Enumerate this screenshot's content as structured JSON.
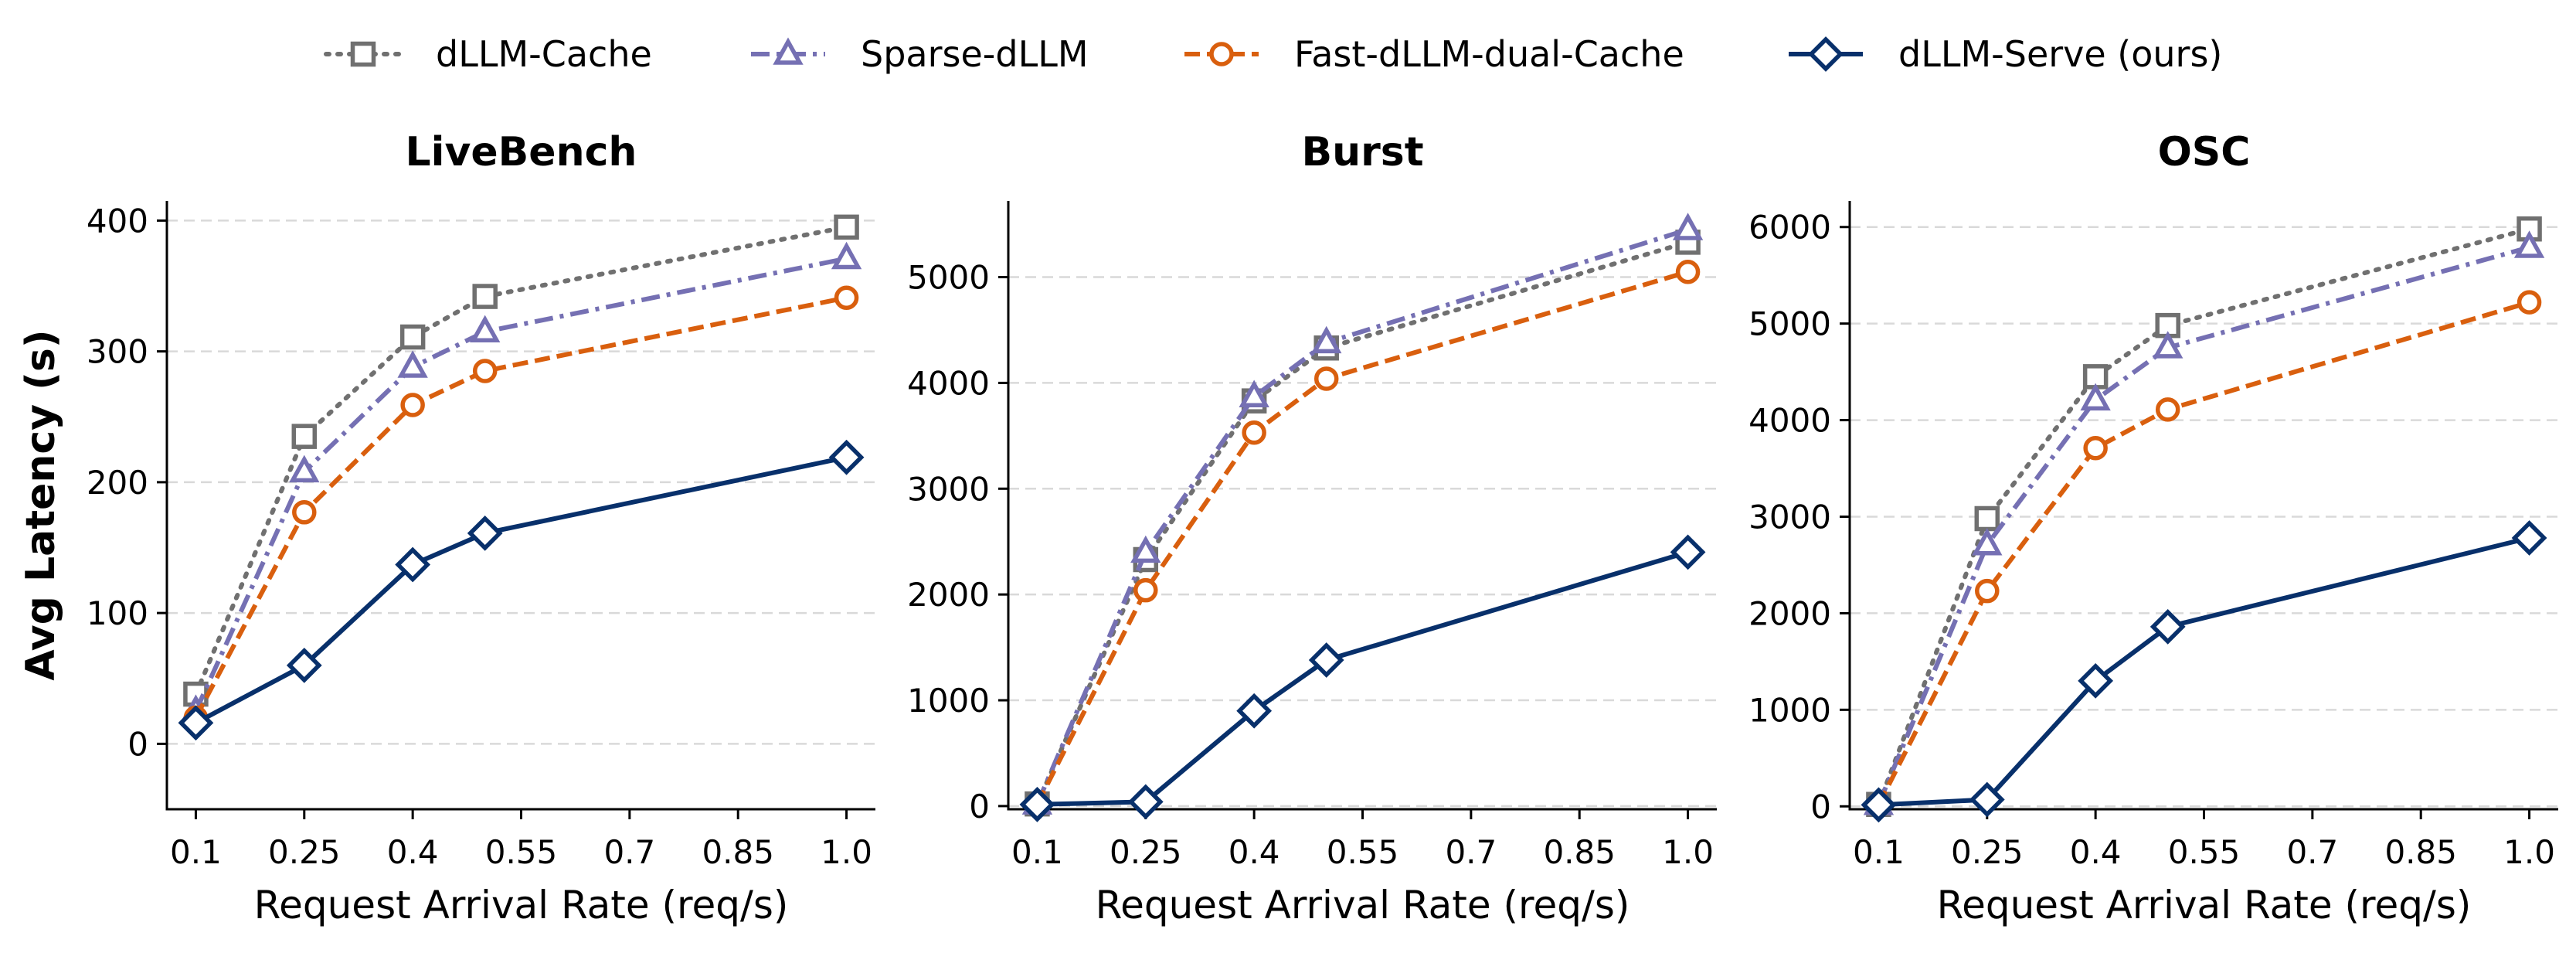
{
  "legend": {
    "items": [
      {
        "name": "dLLM-Cache"
      },
      {
        "name": "Sparse-dLLM"
      },
      {
        "name": "Fast-dLLM-dual-Cache"
      },
      {
        "name": "dLLM-Serve (ours)"
      }
    ]
  },
  "styles": {
    "dLLM-Cache": {
      "color": "#707070",
      "marker": "square",
      "dash": "dotted"
    },
    "Sparse-dLLM": {
      "color": "#7570b3",
      "marker": "triangle",
      "dash": "dashdot"
    },
    "Fast-dLLM-dual-Cache": {
      "color": "#d95f0e",
      "marker": "circle",
      "dash": "dashed"
    },
    "dLLM-Serve (ours)": {
      "color": "#08306b",
      "marker": "diamond",
      "dash": "solid"
    }
  },
  "chart_data": [
    {
      "type": "line",
      "title": "LiveBench",
      "xlabel": "Request Arrival Rate (req/s)",
      "ylabel": "Avg Latency (s)",
      "x": [
        0.1,
        0.25,
        0.4,
        0.5,
        1.0
      ],
      "xticks": [
        0.1,
        0.25,
        0.4,
        0.55,
        0.7,
        0.85,
        1.0
      ],
      "xtick_labels": [
        "0.1",
        "0.25",
        "0.4",
        "0.55",
        "0.7",
        "0.85",
        "1.0"
      ],
      "xlim": [
        0.06,
        1.04
      ],
      "ylim": [
        -50,
        415
      ],
      "yticks": [
        0,
        100,
        200,
        300,
        400
      ],
      "ytick_labels": [
        "0",
        "100",
        "200",
        "300",
        "400"
      ],
      "grid": true,
      "series": [
        {
          "name": "dLLM-Cache",
          "values": [
            38,
            235,
            311,
            342,
            395
          ]
        },
        {
          "name": "Sparse-dLLM",
          "values": [
            25,
            208,
            288,
            315,
            371
          ]
        },
        {
          "name": "Fast-dLLM-dual-Cache",
          "values": [
            20,
            177,
            259,
            285,
            341
          ]
        },
        {
          "name": "dLLM-Serve (ours)",
          "values": [
            16,
            60,
            137,
            161,
            219
          ]
        }
      ]
    },
    {
      "type": "line",
      "title": "Burst",
      "xlabel": "Request Arrival Rate (req/s)",
      "ylabel": "",
      "x": [
        0.1,
        0.25,
        0.4,
        0.5,
        1.0
      ],
      "xticks": [
        0.1,
        0.25,
        0.4,
        0.55,
        0.7,
        0.85,
        1.0
      ],
      "xtick_labels": [
        "0.1",
        "0.25",
        "0.4",
        "0.55",
        "0.7",
        "0.85",
        "1.0"
      ],
      "xlim": [
        0.06,
        1.04
      ],
      "ylim": [
        -30,
        5720
      ],
      "yticks": [
        0,
        1000,
        2000,
        3000,
        4000,
        5000
      ],
      "ytick_labels": [
        "0",
        "1000",
        "2000",
        "3000",
        "4000",
        "5000"
      ],
      "grid": true,
      "series": [
        {
          "name": "dLLM-Cache",
          "values": [
            20,
            2330,
            3830,
            4330,
            5330
          ]
        },
        {
          "name": "Sparse-dLLM",
          "values": [
            20,
            2400,
            3870,
            4380,
            5450
          ]
        },
        {
          "name": "Fast-dLLM-dual-Cache",
          "values": [
            15,
            2040,
            3530,
            4040,
            5050
          ]
        },
        {
          "name": "dLLM-Serve (ours)",
          "values": [
            15,
            40,
            900,
            1380,
            2400
          ]
        }
      ]
    },
    {
      "type": "line",
      "title": "OSC",
      "xlabel": "Request Arrival Rate (req/s)",
      "ylabel": "",
      "x": [
        0.1,
        0.25,
        0.4,
        0.5,
        1.0
      ],
      "xticks": [
        0.1,
        0.25,
        0.4,
        0.55,
        0.7,
        0.85,
        1.0
      ],
      "xtick_labels": [
        "0.1",
        "0.25",
        "0.4",
        "0.55",
        "0.7",
        "0.85",
        "1.0"
      ],
      "xlim": [
        0.06,
        1.04
      ],
      "ylim": [
        -30,
        6270
      ],
      "yticks": [
        0,
        1000,
        2000,
        3000,
        4000,
        5000,
        6000
      ],
      "ytick_labels": [
        "0",
        "1000",
        "2000",
        "3000",
        "4000",
        "5000",
        "6000"
      ],
      "grid": true,
      "series": [
        {
          "name": "dLLM-Cache",
          "values": [
            20,
            2980,
            4450,
            4980,
            5980
          ]
        },
        {
          "name": "Sparse-dLLM",
          "values": [
            20,
            2710,
            4210,
            4750,
            5790
          ]
        },
        {
          "name": "Fast-dLLM-dual-Cache",
          "values": [
            15,
            2230,
            3710,
            4110,
            5220
          ]
        },
        {
          "name": "dLLM-Serve (ours)",
          "values": [
            15,
            70,
            1300,
            1860,
            2780
          ]
        }
      ]
    }
  ]
}
